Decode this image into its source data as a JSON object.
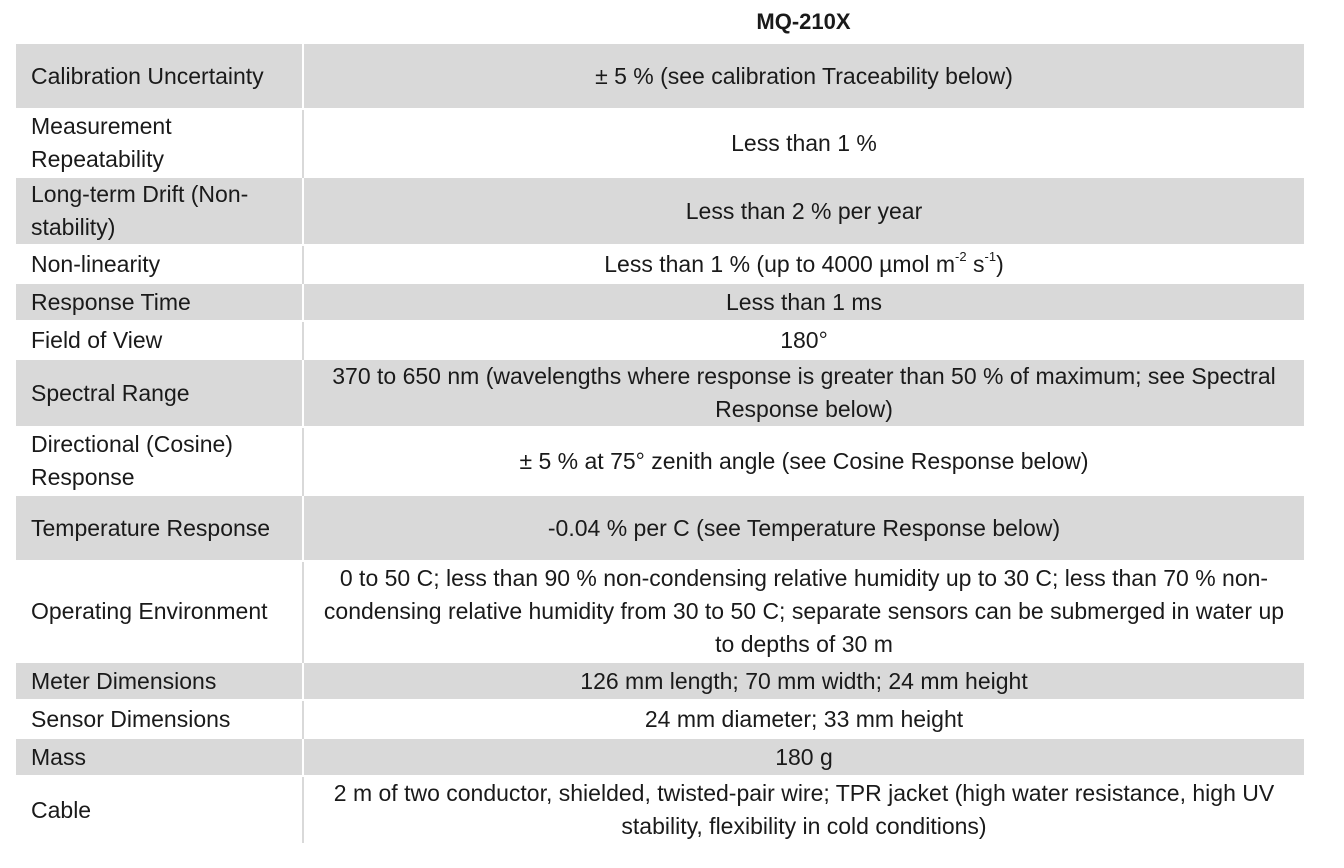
{
  "header": {
    "model": "MQ-210X"
  },
  "specs": {
    "calibration": {
      "label": "Calibration Uncertainty",
      "value": "± 5 % (see calibration Traceability below)"
    },
    "repeatability": {
      "label": "Measurement Repeatability",
      "value": "Less than 1 %"
    },
    "drift": {
      "label": "Long-term Drift (Non-stability)",
      "value": "Less than 2 % per year"
    },
    "nonlinearity": {
      "label": "Non-linearity",
      "value_a": "Less than 1 % (up to 4000 µmol m",
      "value_sup1": "-2",
      "value_b": " s",
      "value_sup2": "-1",
      "value_c": ")"
    },
    "response_time": {
      "label": "Response Time",
      "value": "Less than 1 ms"
    },
    "field_of_view": {
      "label": "Field of View",
      "value": "180°"
    },
    "spectral_range": {
      "label": "Spectral Range",
      "value": "370 to 650 nm (wavelengths where response is greater than 50 % of maximum; see Spectral Response below)"
    },
    "directional": {
      "label": "Directional (Cosine) Response",
      "value": "± 5 % at 75° zenith angle (see Cosine Response below)"
    },
    "temperature": {
      "label": "Temperature Response",
      "value": "-0.04 % per C (see Temperature Response below)"
    },
    "environment": {
      "label": "Operating Environment",
      "value": "0 to 50 C; less than 90 % non-condensing relative humidity up to 30 C; less than 70 % non-condensing relative humidity from 30 to 50 C; separate sensors can be submerged in water up to depths of 30 m"
    },
    "meter_dimensions": {
      "label": "Meter Dimensions",
      "value": "126 mm length; 70 mm width; 24 mm height"
    },
    "sensor_dimensions": {
      "label": "Sensor Dimensions",
      "value": "24 mm diameter; 33 mm height"
    },
    "mass": {
      "label": "Mass",
      "value": "180 g"
    },
    "cable": {
      "label": "Cable",
      "value": "2 m of two conductor, shielded, twisted-pair wire; TPR jacket (high water resistance, high UV stability, flexibility in cold conditions)"
    }
  }
}
